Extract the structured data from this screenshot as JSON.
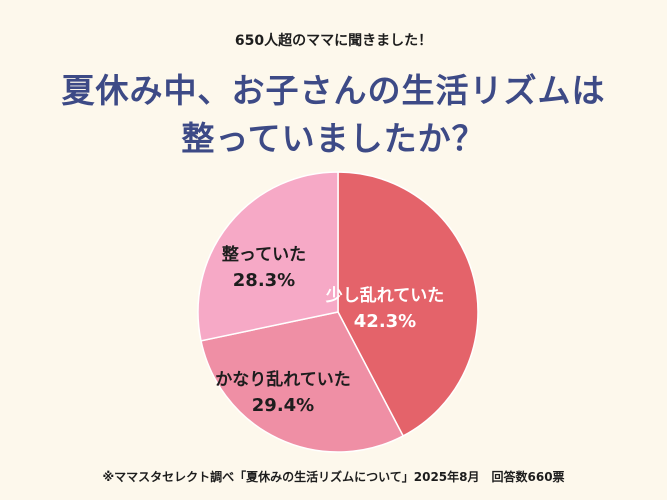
{
  "header": {
    "subtitle": "650人超のママに聞きました！",
    "title_line1": "夏休み中、お子さんの生活リズムは",
    "title_line2": "整っていましたか？"
  },
  "chart_data": {
    "type": "pie",
    "title": "夏休み中、お子さんの生活リズムは整っていましたか？",
    "slices": [
      {
        "label": "少し乱れていた",
        "value": 42.3,
        "value_text": "42.3%",
        "color": "#e4636a",
        "text_color": "#ffffff"
      },
      {
        "label": "かなり乱れていた",
        "value": 29.4,
        "value_text": "29.4%",
        "color": "#ef8fa5",
        "text_color": "#1d1d1d"
      },
      {
        "label": "整っていた",
        "value": 28.3,
        "value_text": "28.3%",
        "color": "#f6a9c6",
        "text_color": "#1d1d1d"
      }
    ]
  },
  "footer": {
    "source": "※ママスタセレクト調べ「夏休みの生活リズムについて」2025年8月　回答数660票"
  }
}
